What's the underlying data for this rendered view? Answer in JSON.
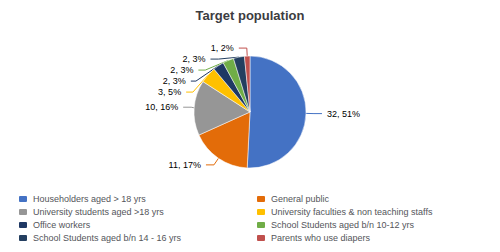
{
  "chart_data": {
    "type": "pie",
    "title": "Target population",
    "categories": [
      "Householders aged > 18 yrs",
      "General public",
      "University students aged >18 yrs",
      "University faculties & non teaching staffs",
      "Office workers",
      "School Students aged b/n 10-12 yrs",
      "School Students aged b/n 14 - 16 yrs",
      "Parents who use diapers"
    ],
    "values": [
      32,
      11,
      10,
      3,
      2,
      2,
      2,
      1
    ],
    "value_labels": [
      "32, 51%",
      "11, 17%",
      "10, 16%",
      "3, 5%",
      "2, 3%",
      "2, 3%",
      "2, 3%",
      "1, 2%"
    ],
    "colors": [
      "#4472C4",
      "#E36C09",
      "#969696",
      "#FFC000",
      "#1F3864",
      "#70AD47",
      "#243F60",
      "#C0504D"
    ],
    "data_labels": true,
    "legend": "bottom"
  }
}
